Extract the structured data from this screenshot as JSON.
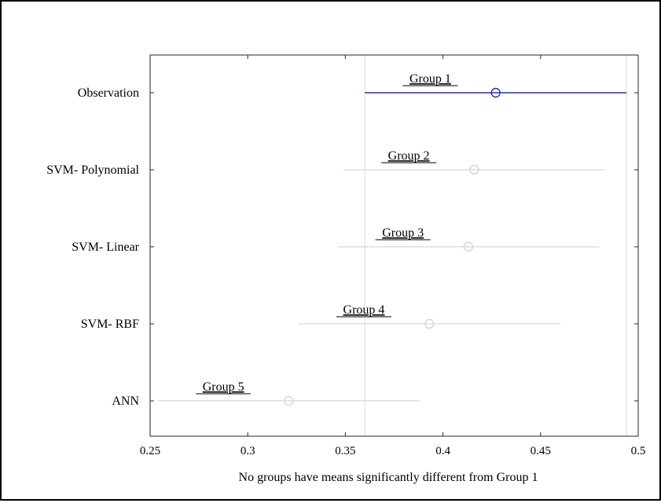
{
  "chart_data": {
    "type": "interval",
    "title": "",
    "xlabel": "No groups have means significantly different from Group 1",
    "ylabel": "",
    "xlim": [
      0.25,
      0.5
    ],
    "x_ticks": [
      "0.25",
      "0.3",
      "0.35",
      "0.4",
      "0.45",
      "0.5"
    ],
    "grid": false,
    "reference_lines": [
      0.36,
      0.494
    ],
    "highlight_color": "#2929c8",
    "muted_color": "#d6d6d6",
    "items": [
      {
        "category": "Observation",
        "group_label": "Group 1",
        "mean": 0.427,
        "low": 0.36,
        "high": 0.494,
        "highlighted": true
      },
      {
        "category": "SVM- Polynomial",
        "group_label": "Group 2",
        "mean": 0.416,
        "low": 0.349,
        "high": 0.483,
        "highlighted": false
      },
      {
        "category": "SVM- Linear",
        "group_label": "Group 3",
        "mean": 0.413,
        "low": 0.346,
        "high": 0.48,
        "highlighted": false
      },
      {
        "category": "SVM- RBF",
        "group_label": "Group 4",
        "mean": 0.393,
        "low": 0.326,
        "high": 0.46,
        "highlighted": false
      },
      {
        "category": "ANN",
        "group_label": "Group 5",
        "mean": 0.321,
        "low": 0.254,
        "high": 0.388,
        "highlighted": false
      }
    ]
  }
}
